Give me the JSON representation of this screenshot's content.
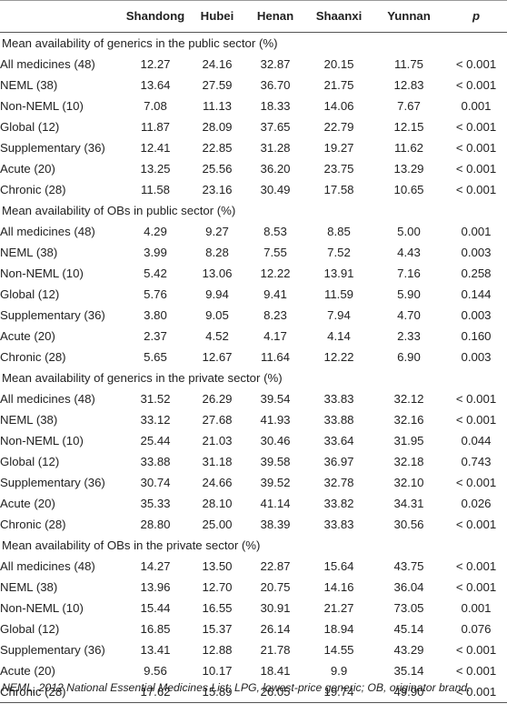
{
  "table": {
    "columns": [
      "",
      "Shandong",
      "Hubei",
      "Henan",
      "Shaanxi",
      "Yunnan",
      "p"
    ],
    "sections": [
      {
        "title": "Mean availability of generics in the public sector (%)",
        "rows": [
          {
            "label": "All medicines (48)",
            "values": [
              "12.27",
              "24.16",
              "32.87",
              "20.15",
              "11.75",
              "< 0.001"
            ]
          },
          {
            "label": "NEML (38)",
            "values": [
              "13.64",
              "27.59",
              "36.70",
              "21.75",
              "12.83",
              "< 0.001"
            ]
          },
          {
            "label": "Non-NEML (10)",
            "values": [
              "7.08",
              "11.13",
              "18.33",
              "14.06",
              "7.67",
              "0.001"
            ]
          },
          {
            "label": "Global (12)",
            "values": [
              "11.87",
              "28.09",
              "37.65",
              "22.79",
              "12.15",
              "< 0.001"
            ]
          },
          {
            "label": "Supplementary (36)",
            "values": [
              "12.41",
              "22.85",
              "31.28",
              "19.27",
              "11.62",
              "< 0.001"
            ]
          },
          {
            "label": "Acute (20)",
            "values": [
              "13.25",
              "25.56",
              "36.20",
              "23.75",
              "13.29",
              "< 0.001"
            ]
          },
          {
            "label": "Chronic (28)",
            "values": [
              "11.58",
              "23.16",
              "30.49",
              "17.58",
              "10.65",
              "< 0.001"
            ]
          }
        ]
      },
      {
        "title": "Mean availability of OBs in public sector (%)",
        "rows": [
          {
            "label": "All medicines (48)",
            "values": [
              "4.29",
              "9.27",
              "8.53",
              "8.85",
              "5.00",
              "0.001"
            ]
          },
          {
            "label": "NEML (38)",
            "values": [
              "3.99",
              "8.28",
              "7.55",
              "7.52",
              "4.43",
              "0.003"
            ]
          },
          {
            "label": "Non-NEML (10)",
            "values": [
              "5.42",
              "13.06",
              "12.22",
              "13.91",
              "7.16",
              "0.258"
            ]
          },
          {
            "label": "Global (12)",
            "values": [
              "5.76",
              "9.94",
              "9.41",
              "11.59",
              "5.90",
              "0.144"
            ]
          },
          {
            "label": "Supplementary (36)",
            "values": [
              "3.80",
              "9.05",
              "8.23",
              "7.94",
              "4.70",
              "0.003"
            ]
          },
          {
            "label": "Acute (20)",
            "values": [
              "2.37",
              "4.52",
              "4.17",
              "4.14",
              "2.33",
              "0.160"
            ]
          },
          {
            "label": "Chronic (28)",
            "values": [
              "5.65",
              "12.67",
              "11.64",
              "12.22",
              "6.90",
              "0.003"
            ]
          }
        ]
      },
      {
        "title": "Mean availability of generics in the private sector (%)",
        "rows": [
          {
            "label": "All medicines (48)",
            "values": [
              "31.52",
              "26.29",
              "39.54",
              "33.83",
              "32.12",
              "< 0.001"
            ]
          },
          {
            "label": "NEML (38)",
            "values": [
              "33.12",
              "27.68",
              "41.93",
              "33.88",
              "32.16",
              "< 0.001"
            ]
          },
          {
            "label": "Non-NEML (10)",
            "values": [
              "25.44",
              "21.03",
              "30.46",
              "33.64",
              "31.95",
              "0.044"
            ]
          },
          {
            "label": "Global (12)",
            "values": [
              "33.88",
              "31.18",
              "39.58",
              "36.97",
              "32.18",
              "0.743"
            ]
          },
          {
            "label": "Supplementary (36)",
            "values": [
              "30.74",
              "24.66",
              "39.52",
              "32.78",
              "32.10",
              "< 0.001"
            ]
          },
          {
            "label": "Acute (20)",
            "values": [
              "35.33",
              "28.10",
              "41.14",
              "33.82",
              "34.31",
              "0.026"
            ]
          },
          {
            "label": "Chronic (28)",
            "values": [
              "28.80",
              "25.00",
              "38.39",
              "33.83",
              "30.56",
              "< 0.001"
            ]
          }
        ]
      },
      {
        "title": "Mean availability of OBs in the private sector (%)",
        "rows": [
          {
            "label": "All medicines (48)",
            "values": [
              "14.27",
              "13.50",
              "22.87",
              "15.64",
              "43.75",
              "< 0.001"
            ]
          },
          {
            "label": "NEML (38)",
            "values": [
              "13.96",
              "12.70",
              "20.75",
              "14.16",
              "36.04",
              "< 0.001"
            ]
          },
          {
            "label": "Non-NEML (10)",
            "values": [
              "15.44",
              "16.55",
              "30.91",
              "21.27",
              "73.05",
              "0.001"
            ]
          },
          {
            "label": "Global (12)",
            "values": [
              "16.85",
              "15.37",
              "26.14",
              "18.94",
              "45.14",
              "0.076"
            ]
          },
          {
            "label": "Supplementary (36)",
            "values": [
              "13.41",
              "12.88",
              "21.78",
              "14.55",
              "43.29",
              "< 0.001"
            ]
          },
          {
            "label": "Acute (20)",
            "values": [
              "9.56",
              "10.17",
              "18.41",
              "9.9",
              "35.14",
              "< 0.001"
            ]
          },
          {
            "label": "Chronic (28)",
            "values": [
              "17.62",
              "15.89",
              "26.05",
              "19.74",
              "49.90",
              "< 0.001"
            ]
          }
        ]
      }
    ]
  },
  "footnote": "NEML, 2012 National Essential Medicines List; LPG, lowest-price generic; OB, originator brand."
}
